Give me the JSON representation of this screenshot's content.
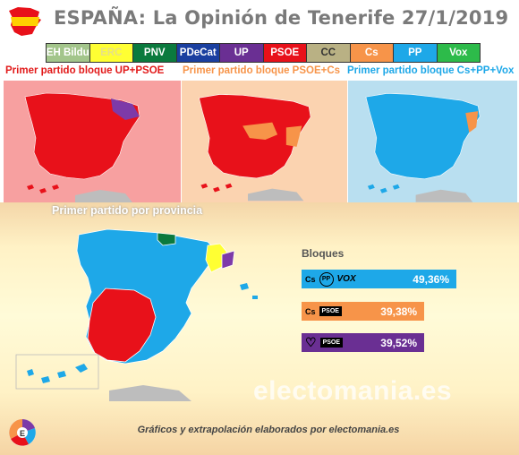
{
  "header": {
    "title": "ESPAÑA: La Opinión de Tenerife 27/1/2019"
  },
  "legend": [
    {
      "label": "EH Bildu",
      "color": "#a3c58b",
      "text_color": "#ffffff"
    },
    {
      "label": "ERC",
      "color": "#ffff33",
      "text_color": "#e6e08a"
    },
    {
      "label": "PNV",
      "color": "#0b7a3e",
      "text_color": "#ffffff"
    },
    {
      "label": "PDeCat",
      "color": "#1a3fa0",
      "text_color": "#ffffff"
    },
    {
      "label": "UP",
      "color": "#6a2f93",
      "text_color": "#ffffff"
    },
    {
      "label": "PSOE",
      "color": "#e8111a",
      "text_color": "#ffffff"
    },
    {
      "label": "CC",
      "color": "#b9b184",
      "text_color": "#333333"
    },
    {
      "label": "Cs",
      "color": "#f79449",
      "text_color": "#ffffff"
    },
    {
      "label": "PP",
      "color": "#1ea8e8",
      "text_color": "#ffffff"
    },
    {
      "label": "Vox",
      "color": "#2dbb4a",
      "text_color": "#ffffff"
    }
  ],
  "panels": [
    {
      "title": "Primer partido bloque UP+PSOE",
      "title_color": "#e21a1a",
      "bg": "#f7a0a0",
      "main_color": "#e8111a",
      "accent_color": "#7d3aa8"
    },
    {
      "title": "Primer partido bloque PSOE+Cs",
      "title_color": "#f79449",
      "bg": "#fbd3b0",
      "main_color": "#e8111a",
      "accent_color": "#f79449"
    },
    {
      "title": "Primer partido bloque Cs+PP+Vox",
      "title_color": "#1ea8e8",
      "bg": "#b9dff0",
      "main_color": "#1ea8e8",
      "accent_color": "#f79449"
    }
  ],
  "main_map": {
    "title": "Primer partido por provincia",
    "blocks_label": "Bloques",
    "blocks": [
      {
        "icons": [
          "Cs",
          "PP",
          "VOX"
        ],
        "value": "49,36%",
        "color": "#1ea8e8"
      },
      {
        "icons": [
          "Cs",
          "PSOE"
        ],
        "value": "39,38%",
        "color": "#f79449"
      },
      {
        "icons": [
          "♡",
          "PSOE"
        ],
        "value": "39,52%",
        "color": "#6a2f93"
      }
    ]
  },
  "watermark": "electomania.es",
  "footer": "Gráficos y extrapolación elaborados por electomania.es"
}
